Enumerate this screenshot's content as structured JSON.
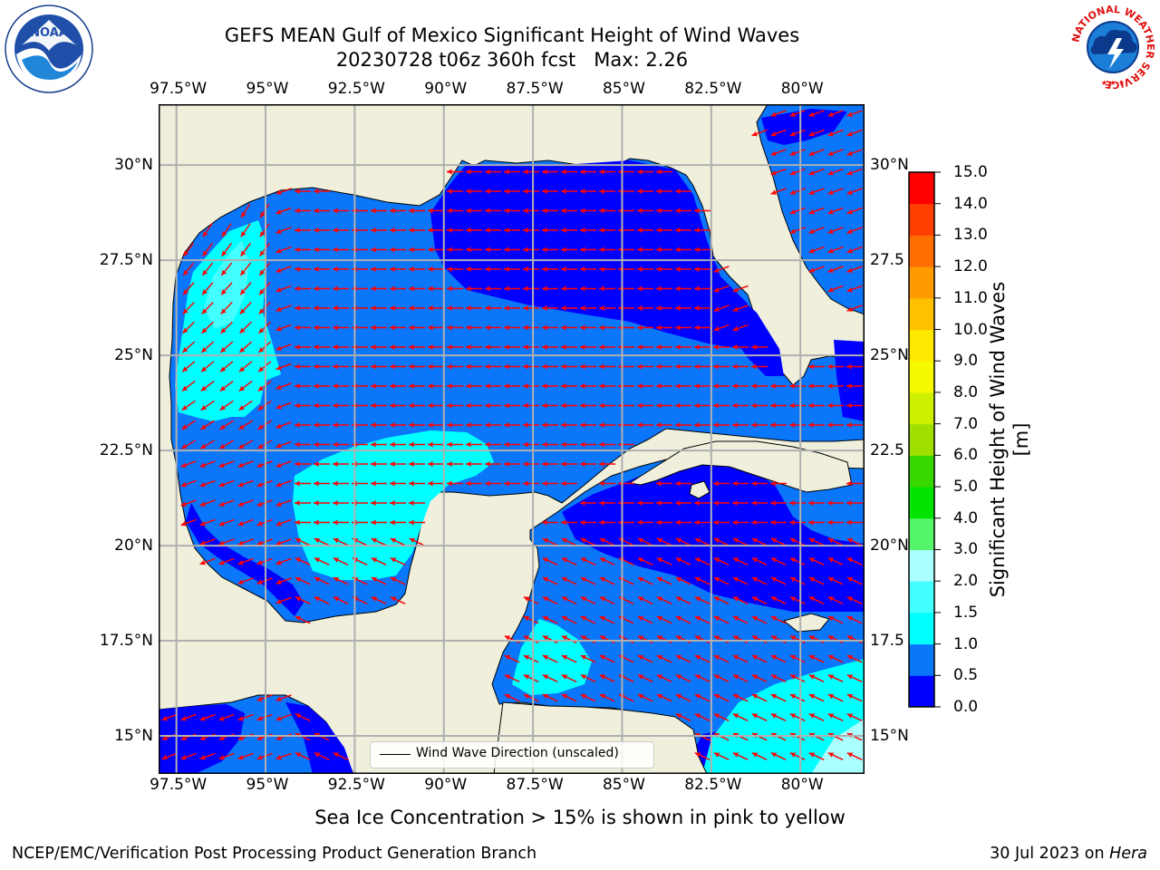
{
  "header": {
    "title_line1": "GEFS MEAN Gulf of Mexico Significant Height of Wind Waves",
    "title_line2": "20230728 t06z 360h fcst   Max: 2.26",
    "left_logo_icon": "noaa-logo-icon",
    "right_logo_icon": "national-weather-service-logo-icon",
    "right_logo_text": "NATIONAL WEATHER SERVICE"
  },
  "map": {
    "lon_labels": [
      "97.5°W",
      "95°W",
      "92.5°W",
      "90°W",
      "87.5°W",
      "85°W",
      "82.5°W",
      "80°W"
    ],
    "lat_labels_left": [
      "30°N",
      "27.5°N",
      "25°N",
      "22.5°N",
      "20°N",
      "17.5°N",
      "15°N"
    ],
    "lat_labels_right": [
      "30°N",
      "27.5",
      "25°N",
      "22.5",
      "20°N",
      "17.5",
      "15°N"
    ],
    "lon_range": [
      -98,
      -78.2
    ],
    "lat_range": [
      14,
      31.6
    ],
    "land_color": "#efefdc",
    "arrow_color": "#ff0000",
    "grid": true,
    "legend": {
      "label": "Wind Wave Direction (unscaled)",
      "placement": "bottom-center"
    }
  },
  "colorbar": {
    "label": "Significant Height of Wind Waves [m]",
    "ticks": [
      "0.0",
      "0.5",
      "1.0",
      "1.5",
      "2.0",
      "3.0",
      "4.0",
      "5.0",
      "6.0",
      "7.0",
      "8.0",
      "9.0",
      "10.0",
      "11.0",
      "12.0",
      "13.0",
      "14.0",
      "15.0"
    ],
    "colors": [
      "#0000ff",
      "#0a76fa",
      "#00ffff",
      "#44ffff",
      "#aaffff",
      "#55f56a",
      "#00e400",
      "#38d700",
      "#9fe000",
      "#cdef00",
      "#f5fa00",
      "#ffe800",
      "#ffc000",
      "#ff9a00",
      "#ff6e00",
      "#ff4000",
      "#ff0000"
    ]
  },
  "footer": {
    "note": "Sea Ice Concentration > 15% is shown in pink to yellow",
    "left": "NCEP/EMC/Verification Post Processing Product Generation Branch",
    "right_prefix": "30 Jul 2023 on ",
    "right_host": "Hera"
  }
}
